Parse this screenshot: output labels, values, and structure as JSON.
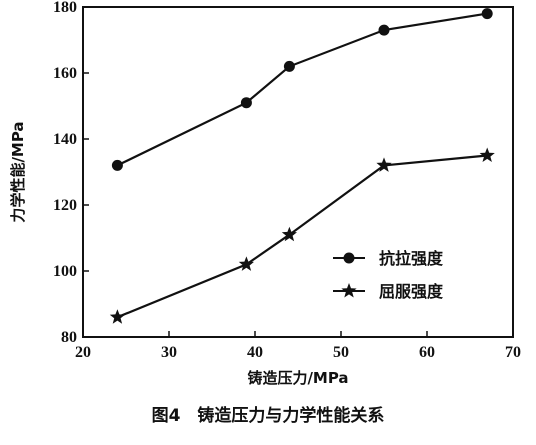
{
  "chart_data": {
    "type": "line",
    "caption": "图4　铸造压力与力学性能关系",
    "xlabel": "铸造压力/MPa",
    "ylabel": "力学性能/MPa",
    "xlim": [
      20,
      70
    ],
    "ylim": [
      80,
      180
    ],
    "xticks": [
      20,
      30,
      40,
      50,
      60,
      70
    ],
    "yticks": [
      80,
      100,
      120,
      140,
      160,
      180
    ],
    "grid": false,
    "legend_position": "center-right",
    "series": [
      {
        "name": "抗拉强度",
        "marker": "circle",
        "x": [
          24,
          39,
          44,
          55,
          67
        ],
        "y": [
          132,
          151,
          162,
          173,
          178
        ]
      },
      {
        "name": "屈服强度",
        "marker": "star",
        "x": [
          24,
          39,
          44,
          55,
          67
        ],
        "y": [
          86,
          102,
          111,
          132,
          135
        ]
      }
    ]
  }
}
